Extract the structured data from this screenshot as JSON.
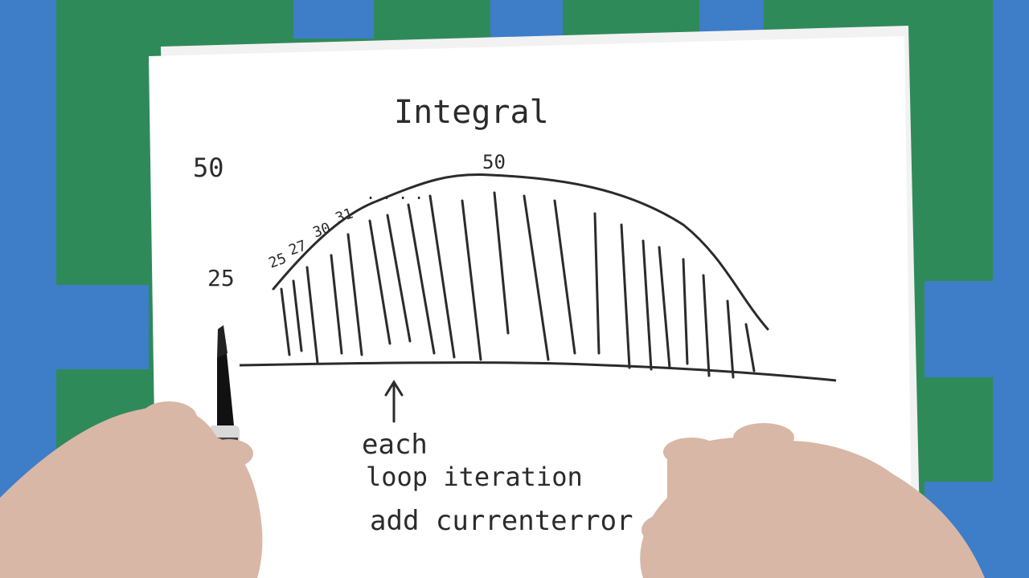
{
  "sketch": {
    "title": "Integral",
    "y_labels": {
      "top": "50",
      "mid": "25"
    },
    "curve_values": [
      "25",
      "27",
      "30",
      "31",
      "....",
      "50"
    ],
    "arrow_note": [
      "each",
      "loop iteration",
      "add currenterror"
    ]
  },
  "colors": {
    "ink": "#2b2b2b",
    "paper": "#ffffff",
    "green_mat": "#2f8a5a",
    "blue_tape": "#3e7dc7"
  },
  "icons": [
    "marker",
    "hand"
  ]
}
